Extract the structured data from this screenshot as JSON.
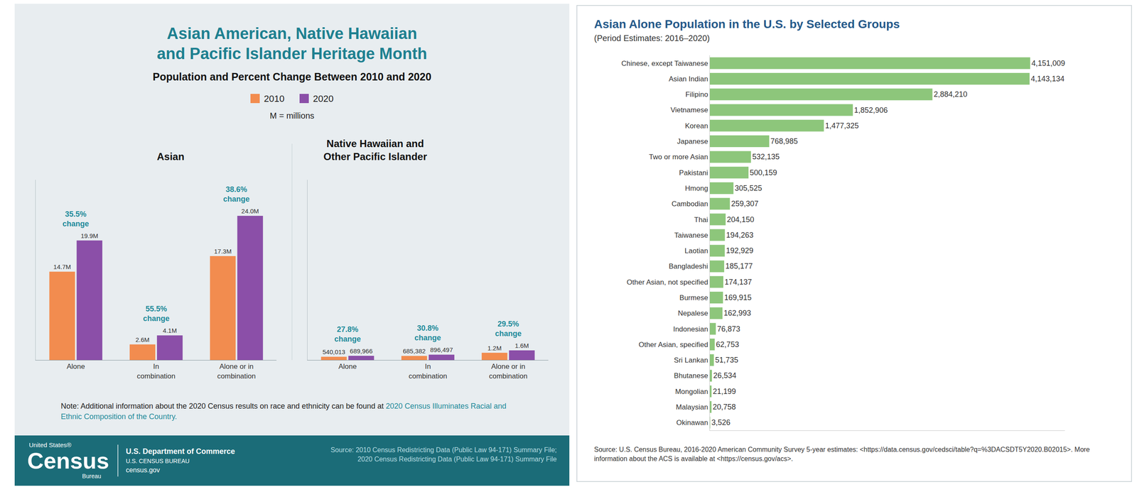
{
  "infographic": {
    "title": "Asian American, Native Hawaiian and Pacific Islander Heritage Month",
    "subtitle": "Population and Percent Change Between 2010 and 2020",
    "units_note": "M = millions",
    "note": "Note: Additional information about the 2020 Census results on race and ethnicity can be found at",
    "note_link": "2020 Census Illuminates Racial and Ethnic Composition of the Country.",
    "footer": {
      "logo_top": "United States®",
      "logo_main": "Census",
      "logo_bottom": "Bureau",
      "department": "U.S. Department of Commerce",
      "bureau": "U.S. CENSUS BUREAU",
      "website": "census.gov",
      "source": "Source: 2010 Census Redistricting Data (Public Law 94-171) Summary File; 2020 Census Redistricting Data (Public Law 94-171) Summary File"
    }
  },
  "chart_data": [
    {
      "type": "bar",
      "title": "Asian",
      "categories": [
        "Alone",
        "In combination",
        "Alone or in combination"
      ],
      "series": [
        {
          "name": "2010",
          "color": "#f28c4f",
          "values": [
            14700000,
            2600000,
            17300000
          ],
          "value_labels": [
            "14.7M",
            "2.6M",
            "17.3M"
          ]
        },
        {
          "name": "2020",
          "color": "#8b4fa8",
          "values": [
            19900000,
            4100000,
            24000000
          ],
          "value_labels": [
            "19.9M",
            "4.1M",
            "24.0M"
          ]
        }
      ],
      "annotations": [
        {
          "category": "Alone",
          "text": "35.5% change"
        },
        {
          "category": "In combination",
          "text": "55.5% change"
        },
        {
          "category": "Alone or in combination",
          "text": "38.6% change"
        }
      ],
      "ylim": [
        0,
        30000000
      ],
      "data_labels": true,
      "tick_labels": "x",
      "legend": "top"
    },
    {
      "type": "bar",
      "title": "Native Hawaiian and Other Pacific Islander",
      "categories": [
        "Alone",
        "In combination",
        "Alone or in combination"
      ],
      "series": [
        {
          "name": "2010",
          "color": "#f28c4f",
          "values": [
            540013,
            685382,
            1200000
          ],
          "value_labels": [
            "540,013",
            "685,382",
            "1.2M"
          ]
        },
        {
          "name": "2020",
          "color": "#8b4fa8",
          "values": [
            689966,
            896497,
            1600000
          ],
          "value_labels": [
            "689,966",
            "896,497",
            "1.6M"
          ]
        }
      ],
      "annotations": [
        {
          "category": "Alone",
          "text": "27.8% change"
        },
        {
          "category": "In combination",
          "text": "30.8% change"
        },
        {
          "category": "Alone or in combination",
          "text": "29.5% change"
        }
      ],
      "ylim": [
        0,
        30000000
      ],
      "data_labels": true,
      "tick_labels": "x"
    },
    {
      "type": "bar",
      "orientation": "horizontal",
      "title": "Asian Alone Population in the U.S. by Selected Groups",
      "subtitle": "(Period Estimates: 2016–2020)",
      "categories": [
        "Chinese, except Taiwanese",
        "Asian Indian",
        "Filipino",
        "Vietnamese",
        "Korean",
        "Japanese",
        "Two or more Asian",
        "Pakistani",
        "Hmong",
        "Cambodian",
        "Thai",
        "Taiwanese",
        "Laotian",
        "Bangladeshi",
        "Other Asian, not specified",
        "Burmese",
        "Nepalese",
        "Indonesian",
        "Other Asian, specified",
        "Sri Lankan",
        "Bhutanese",
        "Mongolian",
        "Malaysian",
        "Okinawan"
      ],
      "values": [
        4151009,
        4143134,
        2884210,
        1852906,
        1477325,
        768985,
        532135,
        500159,
        305525,
        259307,
        204150,
        194263,
        192929,
        185177,
        174137,
        169915,
        162993,
        76873,
        62753,
        51735,
        26534,
        21199,
        20758,
        3526
      ],
      "value_labels": [
        "4,151,009",
        "4,143,134",
        "2,884,210",
        "1,852,906",
        "1,477,325",
        "768,985",
        "532,135",
        "500,159",
        "305,525",
        "259,307",
        "204,150",
        "194,263",
        "192,929",
        "185,177",
        "174,137",
        "169,915",
        "162,993",
        "76,873",
        "62,753",
        "51,735",
        "26,534",
        "21,199",
        "20,758",
        "3,526"
      ],
      "color": "#8dc67b",
      "xlim": [
        0,
        4600000
      ],
      "data_labels": true,
      "tick_labels": "y",
      "source": "Source: U.S. Census Bureau, 2016-2020 American Community Survey 5-year estimates: <https://data.census.gov/cedsci/table?q=%3DACSDT5Y2020.B02015>. More information about the ACS is available at <https://census.gov/acs>."
    }
  ]
}
